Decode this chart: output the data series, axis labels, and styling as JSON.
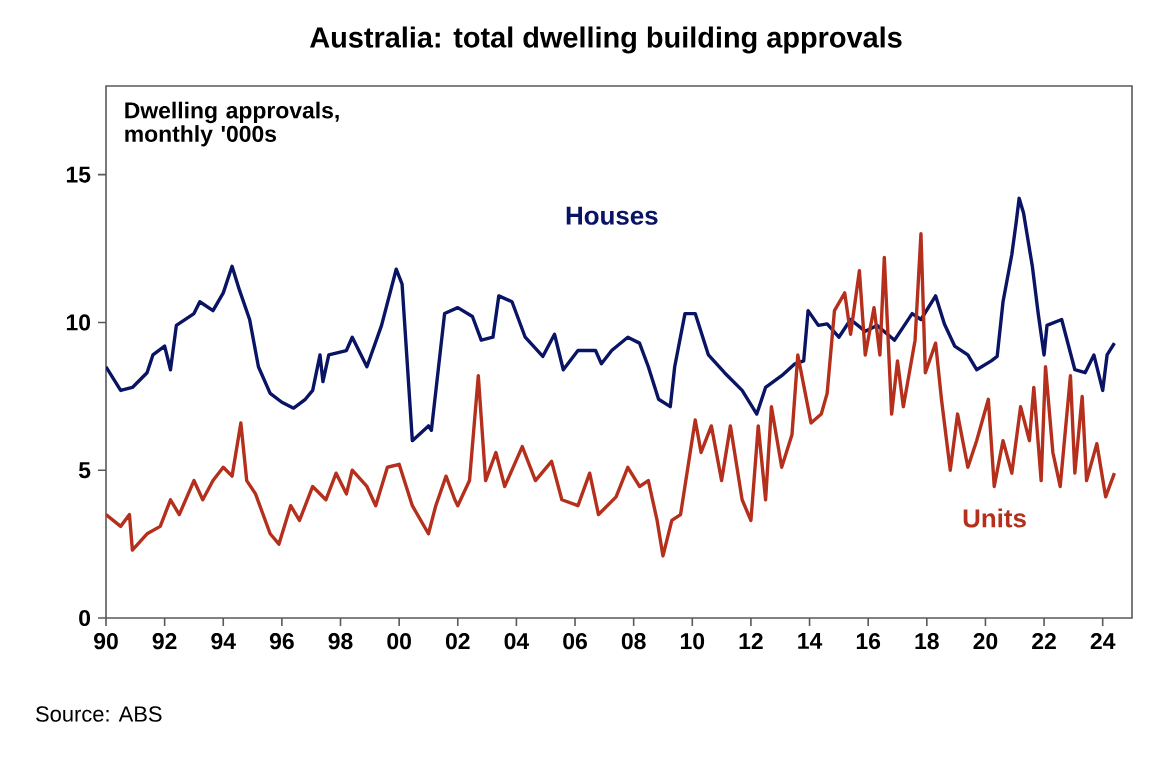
{
  "chart_data": {
    "type": "line",
    "title": "Australia: total dwelling building approvals",
    "ylabel": "Dwelling approvals, monthly '000s",
    "annotations": [
      "Source: ABS"
    ],
    "xlim": [
      1990,
      2025
    ],
    "xticks": [
      {
        "value": 1990,
        "label": "90"
      },
      {
        "value": 1992,
        "label": "92"
      },
      {
        "value": 1994,
        "label": "94"
      },
      {
        "value": 1996,
        "label": "96"
      },
      {
        "value": 1998,
        "label": "98"
      },
      {
        "value": 2000,
        "label": "00"
      },
      {
        "value": 2002,
        "label": "02"
      },
      {
        "value": 2004,
        "label": "04"
      },
      {
        "value": 2006,
        "label": "06"
      },
      {
        "value": 2008,
        "label": "08"
      },
      {
        "value": 2010,
        "label": "10"
      },
      {
        "value": 2012,
        "label": "12"
      },
      {
        "value": 2014,
        "label": "14"
      },
      {
        "value": 2016,
        "label": "16"
      },
      {
        "value": 2018,
        "label": "18"
      },
      {
        "value": 2020,
        "label": "20"
      },
      {
        "value": 2022,
        "label": "22"
      },
      {
        "value": 2024,
        "label": "24"
      }
    ],
    "ylim": [
      0,
      18
    ],
    "yticks": [
      0,
      5,
      10,
      15
    ],
    "grid": false,
    "legend": false,
    "series": [
      {
        "name": "Houses",
        "color": "#0a1464",
        "x": [
          1990.0,
          1990.5,
          1990.9,
          1991.4,
          1991.6,
          1992.0,
          1992.2,
          1992.4,
          1993.0,
          1993.2,
          1993.65,
          1994.0,
          1994.3,
          1994.55,
          1994.9,
          1995.2,
          1995.6,
          1996.0,
          1996.4,
          1996.8,
          1997.05,
          1997.3,
          1997.4,
          1997.6,
          1998.2,
          1998.4,
          1998.9,
          1999.4,
          1999.9,
          2000.1,
          2000.45,
          2001.0,
          2001.1,
          2001.55,
          2002.0,
          2002.5,
          2002.8,
          2003.2,
          2003.4,
          2003.85,
          2004.3,
          2004.9,
          2005.3,
          2005.6,
          2006.1,
          2006.7,
          2006.9,
          2007.25,
          2007.8,
          2008.2,
          2008.5,
          2008.85,
          2009.25,
          2009.4,
          2009.75,
          2010.1,
          2010.55,
          2011.1,
          2011.7,
          2012.2,
          2012.5,
          2013.05,
          2013.5,
          2013.8,
          2013.95,
          2014.3,
          2014.6,
          2015.0,
          2015.4,
          2015.9,
          2016.3,
          2016.9,
          2017.5,
          2017.8,
          2018.3,
          2018.6,
          2018.95,
          2019.4,
          2019.7,
          2020.2,
          2020.4,
          2020.6,
          2020.9,
          2021.05,
          2021.15,
          2021.3,
          2021.6,
          2021.8,
          2022.0,
          2022.1,
          2022.6,
          2023.05,
          2023.4,
          2023.7,
          2024.0,
          2024.15,
          2024.4
        ],
        "values": [
          8.5,
          7.7,
          7.8,
          8.3,
          8.9,
          9.2,
          8.4,
          9.9,
          10.3,
          10.7,
          10.4,
          11.0,
          11.9,
          11.1,
          10.1,
          8.5,
          7.6,
          7.3,
          7.1,
          7.4,
          7.7,
          8.9,
          8.0,
          8.9,
          9.05,
          9.5,
          8.5,
          9.9,
          11.8,
          11.3,
          6.0,
          6.5,
          6.35,
          10.3,
          10.5,
          10.2,
          9.4,
          9.5,
          10.9,
          10.7,
          9.5,
          8.85,
          9.6,
          8.4,
          9.05,
          9.05,
          8.6,
          9.05,
          9.5,
          9.3,
          8.5,
          7.4,
          7.15,
          8.5,
          10.3,
          10.3,
          8.9,
          8.3,
          7.7,
          6.9,
          7.8,
          8.2,
          8.6,
          8.7,
          10.4,
          9.9,
          9.95,
          9.5,
          10.1,
          9.7,
          9.9,
          9.4,
          10.3,
          10.1,
          10.9,
          9.95,
          9.2,
          8.9,
          8.4,
          8.7,
          8.85,
          10.7,
          12.3,
          13.4,
          14.2,
          13.7,
          11.9,
          10.3,
          8.9,
          9.9,
          10.1,
          8.4,
          8.3,
          8.9,
          7.7,
          8.9,
          9.3
        ]
      },
      {
        "name": "Units",
        "color": "#b5301c",
        "x": [
          1990.0,
          1990.5,
          1990.8,
          1990.9,
          1991.4,
          1991.85,
          1992.2,
          1992.5,
          1993.0,
          1993.3,
          1993.65,
          1994.0,
          1994.3,
          1994.6,
          1994.8,
          1995.1,
          1995.6,
          1995.9,
          1996.3,
          1996.6,
          1997.05,
          1997.5,
          1997.85,
          1998.2,
          1998.4,
          1998.9,
          1999.2,
          1999.6,
          2000.0,
          2000.45,
          2001.0,
          2001.25,
          2001.6,
          2001.9,
          2002.0,
          2002.4,
          2002.7,
          2002.95,
          2003.3,
          2003.6,
          2004.2,
          2004.65,
          2005.2,
          2005.55,
          2006.1,
          2006.5,
          2006.8,
          2007.4,
          2007.8,
          2008.2,
          2008.5,
          2008.8,
          2009.0,
          2009.3,
          2009.6,
          2009.85,
          2010.1,
          2010.3,
          2010.65,
          2011.0,
          2011.3,
          2011.7,
          2012.0,
          2012.25,
          2012.5,
          2012.7,
          2013.05,
          2013.4,
          2013.6,
          2014.05,
          2014.4,
          2014.6,
          2014.85,
          2015.2,
          2015.4,
          2015.7,
          2015.9,
          2016.2,
          2016.4,
          2016.55,
          2016.8,
          2017.0,
          2017.2,
          2017.6,
          2017.8,
          2017.95,
          2018.3,
          2018.5,
          2018.8,
          2019.05,
          2019.4,
          2019.7,
          2020.1,
          2020.3,
          2020.6,
          2020.9,
          2021.2,
          2021.5,
          2021.65,
          2021.9,
          2022.05,
          2022.3,
          2022.55,
          2022.9,
          2023.05,
          2023.3,
          2023.45,
          2023.8,
          2024.1,
          2024.4
        ],
        "values": [
          3.5,
          3.1,
          3.5,
          2.3,
          2.85,
          3.1,
          4.0,
          3.5,
          4.65,
          4.0,
          4.65,
          5.1,
          4.8,
          6.6,
          4.65,
          4.2,
          2.85,
          2.5,
          3.8,
          3.3,
          4.45,
          4.0,
          4.9,
          4.2,
          5.0,
          4.45,
          3.8,
          5.1,
          5.2,
          3.8,
          2.85,
          3.8,
          4.8,
          4.0,
          3.8,
          4.65,
          8.2,
          4.65,
          5.6,
          4.45,
          5.8,
          4.65,
          5.3,
          4.0,
          3.8,
          4.9,
          3.5,
          4.1,
          5.1,
          4.45,
          4.65,
          3.3,
          2.1,
          3.3,
          3.5,
          5.1,
          6.7,
          5.6,
          6.5,
          4.65,
          6.5,
          4.0,
          3.3,
          6.5,
          4.0,
          7.15,
          5.1,
          6.2,
          8.9,
          6.6,
          6.9,
          7.6,
          10.4,
          11.0,
          9.6,
          11.75,
          8.9,
          10.5,
          8.9,
          12.2,
          6.9,
          8.7,
          7.15,
          9.4,
          13.0,
          8.3,
          9.3,
          7.4,
          5.0,
          6.9,
          5.1,
          6.0,
          7.4,
          4.45,
          6.0,
          4.9,
          7.15,
          6.0,
          7.8,
          4.65,
          8.5,
          5.6,
          4.45,
          8.2,
          4.9,
          7.5,
          4.65,
          5.9,
          4.1,
          4.9
        ]
      }
    ]
  }
}
